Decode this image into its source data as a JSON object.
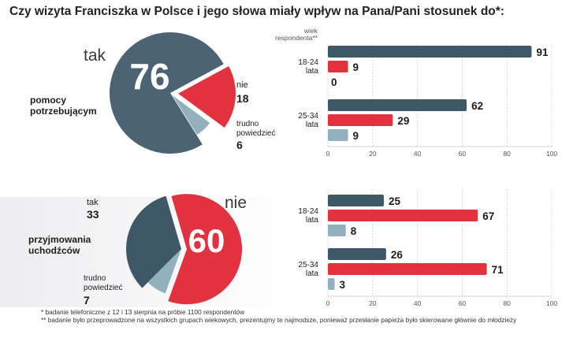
{
  "title": "Czy wizyta  Franciszka w Polsce i jego słowa miały wpływ na Pana/Pani stosunek do*:",
  "colors": {
    "dark": "#3f5868",
    "red": "#e3323f",
    "light": "#93b0be",
    "pie1_dark": "#4b6373"
  },
  "chart_data": [
    {
      "type": "pie",
      "label": "pomocy potrzebującym",
      "slices": [
        {
          "name": "tak",
          "value": 76,
          "color": "dark"
        },
        {
          "name": "nie",
          "value": 18,
          "color": "red"
        },
        {
          "name": "trudno powiedzieć",
          "value": 6,
          "color": "light"
        }
      ]
    },
    {
      "type": "bar",
      "orientation": "horizontal",
      "axis_title": "wiek respondenta**",
      "xlim": [
        0,
        100
      ],
      "ticks": [
        0,
        20,
        40,
        60,
        80,
        100
      ],
      "groups": [
        {
          "label": "18-24 lata",
          "bars": [
            {
              "value": 91,
              "color": "dark"
            },
            {
              "value": 9,
              "color": "red"
            },
            {
              "value": 0,
              "color": "light"
            }
          ]
        },
        {
          "label": "25-34 lata",
          "bars": [
            {
              "value": 62,
              "color": "dark"
            },
            {
              "value": 29,
              "color": "red"
            },
            {
              "value": 9,
              "color": "light"
            }
          ]
        }
      ]
    },
    {
      "type": "pie",
      "label": "przyjmowania uchodźców",
      "slices": [
        {
          "name": "tak",
          "value": 33,
          "color": "dark"
        },
        {
          "name": "nie",
          "value": 60,
          "color": "red"
        },
        {
          "name": "trudno powiedzieć",
          "value": 7,
          "color": "light"
        }
      ]
    },
    {
      "type": "bar",
      "orientation": "horizontal",
      "xlim": [
        0,
        100
      ],
      "ticks": [
        0,
        20,
        40,
        60,
        80,
        100
      ],
      "groups": [
        {
          "label": "18-24 lata",
          "bars": [
            {
              "value": 25,
              "color": "dark"
            },
            {
              "value": 67,
              "color": "red"
            },
            {
              "value": 8,
              "color": "light"
            }
          ]
        },
        {
          "label": "25-34 lata",
          "bars": [
            {
              "value": 26,
              "color": "dark"
            },
            {
              "value": 71,
              "color": "red"
            },
            {
              "value": 3,
              "color": "light"
            }
          ]
        }
      ]
    }
  ],
  "footnotes": [
    "* badanie telefoniczne z 12 i 13 sierpnia na próbie 1100 respondentów",
    "** badanie było przeprowadzone na wszystkich grupach wiekowych, prezentujmy te najmodsze, ponieważ przesłanie papieża było skierowane głównie do młodzieży"
  ]
}
